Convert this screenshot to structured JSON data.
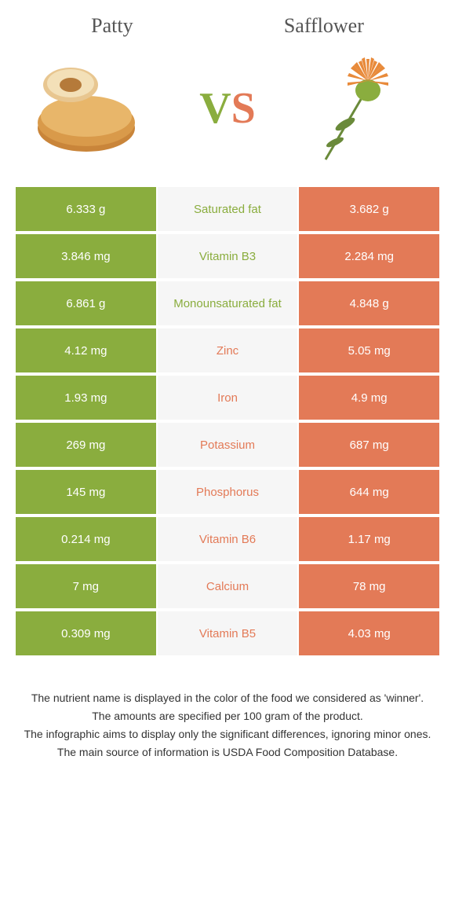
{
  "header": {
    "left_title": "Patty",
    "right_title": "Safflower"
  },
  "vs": {
    "v": "V",
    "s": "S"
  },
  "colors": {
    "green": "#8aad3e",
    "orange": "#e37a57",
    "mid_bg": "#f6f6f6"
  },
  "rows": [
    {
      "left": "6.333 g",
      "label": "Saturated fat",
      "right": "3.682 g",
      "winner": "left"
    },
    {
      "left": "3.846 mg",
      "label": "Vitamin B3",
      "right": "2.284 mg",
      "winner": "left"
    },
    {
      "left": "6.861 g",
      "label": "Monounsaturated fat",
      "right": "4.848 g",
      "winner": "left"
    },
    {
      "left": "4.12 mg",
      "label": "Zinc",
      "right": "5.05 mg",
      "winner": "right"
    },
    {
      "left": "1.93 mg",
      "label": "Iron",
      "right": "4.9 mg",
      "winner": "right"
    },
    {
      "left": "269 mg",
      "label": "Potassium",
      "right": "687 mg",
      "winner": "right"
    },
    {
      "left": "145 mg",
      "label": "Phosphorus",
      "right": "644 mg",
      "winner": "right"
    },
    {
      "left": "0.214 mg",
      "label": "Vitamin B6",
      "right": "1.17 mg",
      "winner": "right"
    },
    {
      "left": "7 mg",
      "label": "Calcium",
      "right": "78 mg",
      "winner": "right"
    },
    {
      "left": "0.309 mg",
      "label": "Vitamin B5",
      "right": "4.03 mg",
      "winner": "right"
    }
  ],
  "footer": {
    "line1": "The nutrient name is displayed in the color of the food we considered as 'winner'.",
    "line2": "The amounts are specified per 100 gram of the product.",
    "line3": "The infographic aims to display only the significant differences, ignoring minor ones.",
    "line4": "The main source of information is USDA Food Composition Database."
  }
}
